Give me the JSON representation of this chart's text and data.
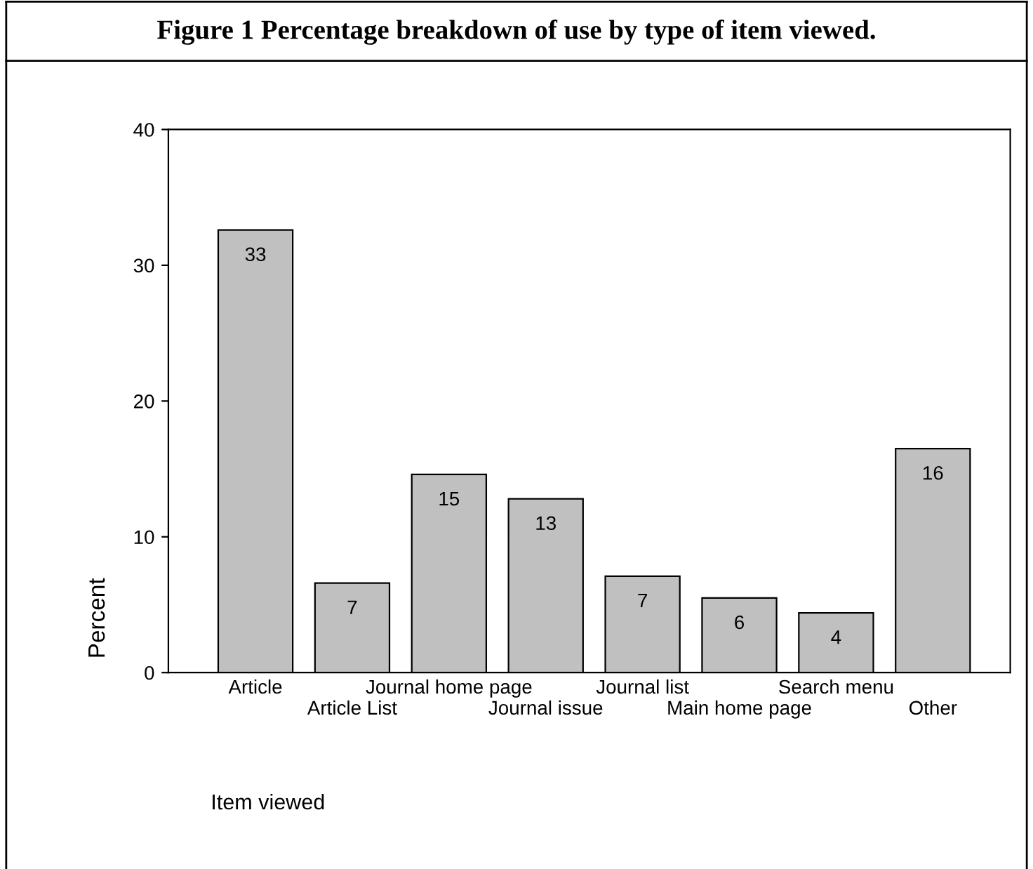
{
  "chart_data": {
    "type": "bar",
    "title": "Figure 1 Percentage breakdown of use by type of item viewed.",
    "xlabel": "Item viewed",
    "ylabel": "Percent",
    "categories": [
      "Article",
      "Article List",
      "Journal home page",
      "Journal issue",
      "Journal list",
      "Main home page",
      "Search menu",
      "Other"
    ],
    "values": [
      32.6,
      6.6,
      14.6,
      12.8,
      7.1,
      5.5,
      4.4,
      16.5
    ],
    "value_labels": [
      "33",
      "7",
      "15",
      "13",
      "7",
      "6",
      "4",
      "16"
    ],
    "color": "#c0c0c0",
    "ylim": [
      0,
      40
    ],
    "yticks": [
      0,
      10,
      20,
      30,
      40
    ],
    "grid": false,
    "legend": false
  }
}
